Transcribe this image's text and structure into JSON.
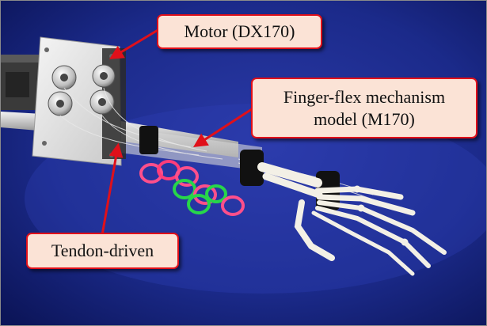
{
  "figure": {
    "callouts": {
      "motor": {
        "label": "Motor (DX170)"
      },
      "finger_flex": {
        "line1": "Finger-flex mechanism",
        "line2": "model (M170)"
      },
      "tendon": {
        "label": "Tendon-driven"
      }
    },
    "colors": {
      "backdrop": "#1a237e",
      "callout_border": "#e0101a",
      "callout_fill": "#fbe3d6",
      "arrow": "#e0101a"
    }
  }
}
